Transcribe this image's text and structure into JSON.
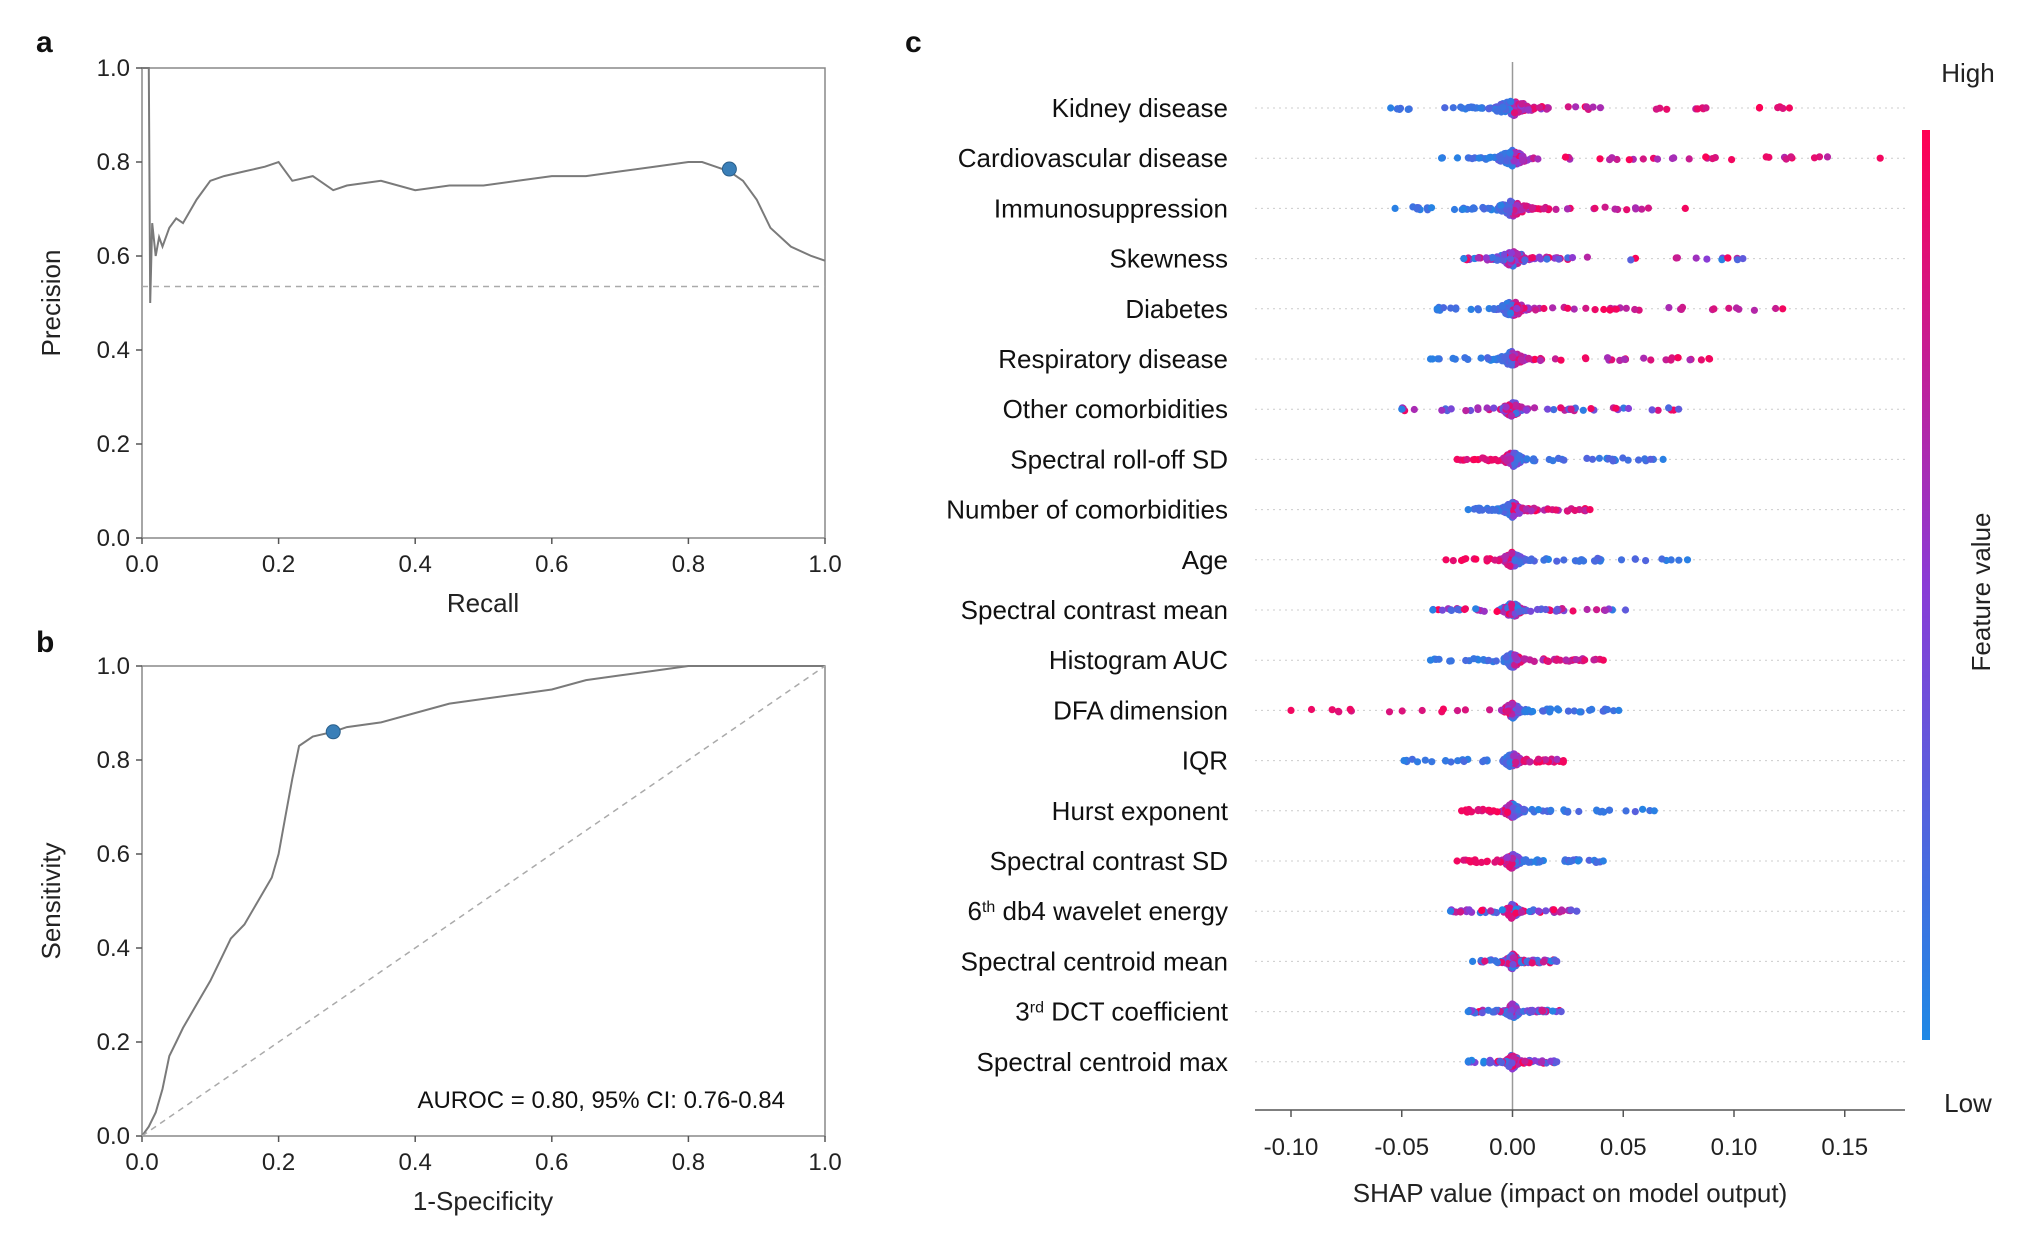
{
  "panels": {
    "a": "a",
    "b": "b",
    "c": "c"
  },
  "chart_data": [
    {
      "id": "a",
      "type": "line",
      "title": "",
      "xlabel": "Recall",
      "ylabel": "Precision",
      "xlim": [
        0,
        1
      ],
      "ylim": [
        0,
        1
      ],
      "xticks": [
        "0.0",
        "0.2",
        "0.4",
        "0.6",
        "0.8",
        "1.0"
      ],
      "yticks": [
        "0.0",
        "0.2",
        "0.4",
        "0.6",
        "0.8",
        "1.0"
      ],
      "grid": false,
      "series": [
        {
          "name": "Precision-Recall curve",
          "x": [
            0.0,
            0.005,
            0.01,
            0.012,
            0.015,
            0.02,
            0.025,
            0.03,
            0.04,
            0.05,
            0.06,
            0.08,
            0.1,
            0.12,
            0.15,
            0.18,
            0.2,
            0.22,
            0.25,
            0.28,
            0.3,
            0.35,
            0.4,
            0.45,
            0.5,
            0.55,
            0.6,
            0.65,
            0.7,
            0.75,
            0.8,
            0.82,
            0.84,
            0.86,
            0.88,
            0.9,
            0.92,
            0.95,
            0.98,
            1.0
          ],
          "y": [
            1.0,
            1.0,
            1.0,
            0.5,
            0.67,
            0.6,
            0.64,
            0.62,
            0.66,
            0.68,
            0.67,
            0.72,
            0.76,
            0.77,
            0.78,
            0.79,
            0.8,
            0.76,
            0.77,
            0.74,
            0.75,
            0.76,
            0.74,
            0.75,
            0.75,
            0.76,
            0.77,
            0.77,
            0.78,
            0.79,
            0.8,
            0.8,
            0.79,
            0.78,
            0.76,
            0.72,
            0.66,
            0.62,
            0.6,
            0.59
          ]
        },
        {
          "name": "Baseline",
          "style": "dashed",
          "x": [
            0,
            1
          ],
          "y": [
            0.535,
            0.535
          ]
        }
      ],
      "marker": {
        "x": 0.86,
        "y": 0.785
      }
    },
    {
      "id": "b",
      "type": "line",
      "title": "",
      "xlabel": "1-Specificity",
      "ylabel": "Sensitivity",
      "xlim": [
        0,
        1
      ],
      "ylim": [
        0,
        1
      ],
      "xticks": [
        "0.0",
        "0.2",
        "0.4",
        "0.6",
        "0.8",
        "1.0"
      ],
      "yticks": [
        "0.0",
        "0.2",
        "0.4",
        "0.6",
        "0.8",
        "1.0"
      ],
      "grid": false,
      "annotation": "AUROC = 0.80, 95% CI: 0.76-0.84",
      "series": [
        {
          "name": "ROC curve",
          "x": [
            0.0,
            0.01,
            0.02,
            0.03,
            0.04,
            0.05,
            0.06,
            0.08,
            0.1,
            0.12,
            0.13,
            0.15,
            0.17,
            0.19,
            0.2,
            0.21,
            0.22,
            0.23,
            0.25,
            0.28,
            0.3,
            0.35,
            0.4,
            0.45,
            0.5,
            0.55,
            0.6,
            0.65,
            0.7,
            0.75,
            0.8,
            0.85,
            0.9,
            1.0
          ],
          "y": [
            0.0,
            0.02,
            0.05,
            0.1,
            0.17,
            0.2,
            0.23,
            0.28,
            0.33,
            0.39,
            0.42,
            0.45,
            0.5,
            0.55,
            0.6,
            0.68,
            0.76,
            0.83,
            0.85,
            0.86,
            0.87,
            0.88,
            0.9,
            0.92,
            0.93,
            0.94,
            0.95,
            0.97,
            0.98,
            0.99,
            1.0,
            1.0,
            1.0,
            1.0
          ]
        },
        {
          "name": "Chance",
          "style": "dashed",
          "x": [
            0,
            1
          ],
          "y": [
            0,
            1
          ]
        }
      ],
      "marker": {
        "x": 0.28,
        "y": 0.86
      }
    },
    {
      "id": "c",
      "type": "scatter",
      "title": "",
      "xlabel": "SHAP value (impact on model output)",
      "xlim": [
        -0.115,
        0.18
      ],
      "xticks": [
        -0.1,
        -0.05,
        0.0,
        0.05,
        0.1,
        0.15
      ],
      "xtick_labels": [
        "-0.10",
        "-0.05",
        "0.00",
        "0.05",
        "0.10",
        "0.15"
      ],
      "colorbar": {
        "label": "Feature value",
        "high": "High",
        "low": "Low",
        "low_color": "#1e88e5",
        "high_color": "#ff0052"
      },
      "features": [
        {
          "name": "Kidney disease",
          "pre": "Kidney disease",
          "sup": "",
          "post": "",
          "min": -0.055,
          "max": 0.125,
          "low_side": -1,
          "core": 0.012
        },
        {
          "name": "Cardiovascular disease",
          "pre": "Cardiovascular disease",
          "sup": "",
          "post": "",
          "min": -0.032,
          "max": 0.166,
          "low_side": -1,
          "core": 0.009
        },
        {
          "name": "Immunosuppression",
          "pre": "Immunosuppression",
          "sup": "",
          "post": "",
          "min": -0.053,
          "max": 0.078,
          "low_side": -1,
          "core": 0.009
        },
        {
          "name": "Skewness",
          "pre": "Skewness",
          "sup": "",
          "post": "",
          "min": -0.022,
          "max": 0.104,
          "low_side": 0,
          "core": 0.009
        },
        {
          "name": "Diabetes",
          "pre": "Diabetes",
          "sup": "",
          "post": "",
          "min": -0.034,
          "max": 0.122,
          "low_side": -1,
          "core": 0.008
        },
        {
          "name": "Respiratory disease",
          "pre": "Respiratory disease",
          "sup": "",
          "post": "",
          "min": -0.037,
          "max": 0.089,
          "low_side": -1,
          "core": 0.007
        },
        {
          "name": "Other comorbidities",
          "pre": "Other comorbidities",
          "sup": "",
          "post": "",
          "min": -0.05,
          "max": 0.075,
          "low_side": 0,
          "core": 0.006
        },
        {
          "name": "Spectral roll-off SD",
          "pre": "Spectral roll-off SD",
          "sup": "",
          "post": "",
          "min": -0.025,
          "max": 0.068,
          "low_side": 1,
          "core": 0.006
        },
        {
          "name": "Number of comorbidities",
          "pre": "Number of comorbidities",
          "sup": "",
          "post": "",
          "min": -0.02,
          "max": 0.035,
          "low_side": -1,
          "core": 0.006
        },
        {
          "name": "Age",
          "pre": "Age",
          "sup": "",
          "post": "",
          "min": -0.03,
          "max": 0.079,
          "low_side": 1,
          "core": 0.006
        },
        {
          "name": "Spectral contrast mean",
          "pre": "Spectral contrast mean",
          "sup": "",
          "post": "",
          "min": -0.036,
          "max": 0.051,
          "low_side": 0,
          "core": 0.006
        },
        {
          "name": "Histogram AUC",
          "pre": "Histogram AUC",
          "sup": "",
          "post": "",
          "min": -0.037,
          "max": 0.041,
          "low_side": -1,
          "core": 0.005
        },
        {
          "name": "DFA dimension",
          "pre": "DFA dimension",
          "sup": "",
          "post": "",
          "min": -0.1,
          "max": 0.048,
          "low_side": 1,
          "core": 0.005
        },
        {
          "name": "IQR",
          "pre": "IQR",
          "sup": "",
          "post": "",
          "min": -0.049,
          "max": 0.023,
          "low_side": -1,
          "core": 0.005
        },
        {
          "name": "Hurst exponent",
          "pre": "Hurst exponent",
          "sup": "",
          "post": "",
          "min": -0.023,
          "max": 0.064,
          "low_side": 1,
          "core": 0.005
        },
        {
          "name": "Spectral contrast SD",
          "pre": "Spectral contrast SD",
          "sup": "",
          "post": "",
          "min": -0.025,
          "max": 0.041,
          "low_side": 1,
          "core": 0.005
        },
        {
          "name": "6th db4 wavelet energy",
          "pre": "6",
          "sup": "th",
          "post": " db4 wavelet energy",
          "min": -0.028,
          "max": 0.029,
          "low_side": 0,
          "core": 0.004
        },
        {
          "name": "Spectral centroid mean",
          "pre": "Spectral centroid mean",
          "sup": "",
          "post": "",
          "min": -0.018,
          "max": 0.02,
          "low_side": 0,
          "core": 0.004
        },
        {
          "name": "3rd DCT coefficient",
          "pre": "3",
          "sup": "rd",
          "post": " DCT coefficient",
          "min": -0.02,
          "max": 0.022,
          "low_side": 0,
          "core": 0.004
        },
        {
          "name": "Spectral centroid max",
          "pre": "Spectral centroid max",
          "sup": "",
          "post": "",
          "min": -0.02,
          "max": 0.02,
          "low_side": 0,
          "core": 0.004
        }
      ]
    }
  ]
}
